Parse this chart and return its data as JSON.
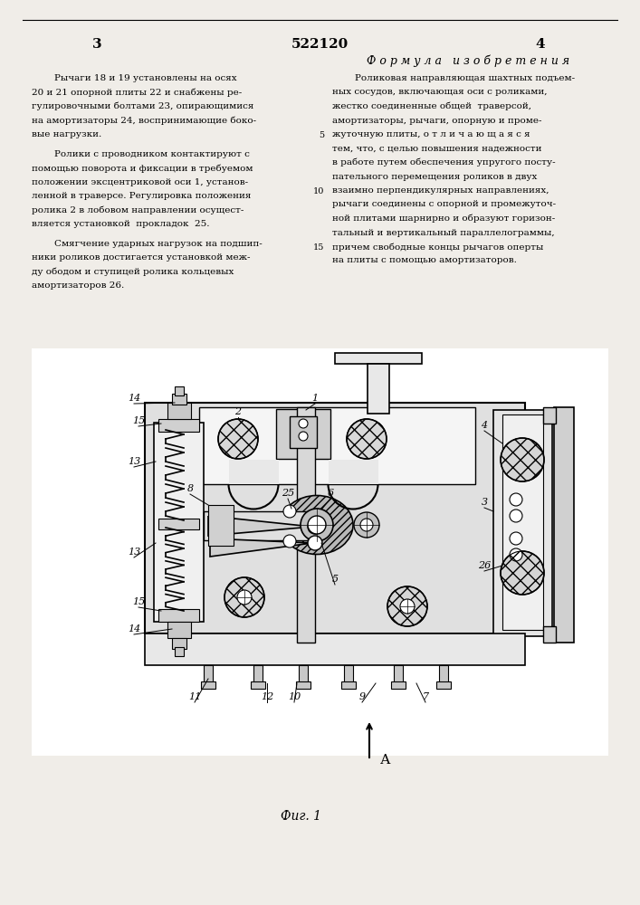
{
  "page_bg": "#f0ede8",
  "top_line_color": "#444444",
  "page_num_left": "3",
  "page_num_center": "522120",
  "page_num_right": "4",
  "formula_header": "Ф о р м у л а   и з о б р е т е н и я",
  "left_text": [
    [
      true,
      "Рычаги 18 и 19 установлены на осях"
    ],
    [
      false,
      "20 и 21 опорной плиты 22 и снабжены ре-"
    ],
    [
      false,
      "гулировочными болтами 23, опирающимися"
    ],
    [
      false,
      "на амортизаторы 24, воспринимающие боко-"
    ],
    [
      false,
      "вые нагрузки."
    ],
    [
      null,
      ""
    ],
    [
      true,
      "Ролики с проводником контактируют с"
    ],
    [
      false,
      "помощью поворота и фиксации в требуемом"
    ],
    [
      false,
      "положении эксцентриковой оси 1, установ-"
    ],
    [
      false,
      "ленной в траверсе. Регулировка положения"
    ],
    [
      false,
      "ролика 2 в лобовом направлении осущест-"
    ],
    [
      false,
      "вляется установкой  прокладок  25."
    ],
    [
      null,
      ""
    ],
    [
      true,
      "Смягчение ударных нагрузок на подшип-"
    ],
    [
      false,
      "ники роликов достигается установкой меж-"
    ],
    [
      false,
      "ду ободом и ступицей ролика кольцевых"
    ],
    [
      false,
      "амортизаторов 26."
    ]
  ],
  "right_text": [
    [
      true,
      "Роликовая направляющая шахтных подъем-"
    ],
    [
      false,
      "ных сосудов, включающая оси с роликами,"
    ],
    [
      false,
      "жестко соединенные общей  траверсой,"
    ],
    [
      false,
      "амортизаторы, рычаги, опорную и проме-"
    ],
    [
      false,
      "жуточную плиты, о т л и ч а ю щ а я с я"
    ],
    [
      false,
      "тем, что, с целью повышения надежности"
    ],
    [
      false,
      "в работе путем обеспечения упругого посту-"
    ],
    [
      false,
      "пательного перемещения роликов в двух"
    ],
    [
      false,
      "взаимно перпендикулярных направлениях,"
    ],
    [
      false,
      "рычаги соединены с опорной и промежуточ-"
    ],
    [
      false,
      "ной плитами шарнирно и образуют горизон-"
    ],
    [
      false,
      "тальный и вертикальный параллелограммы,"
    ],
    [
      false,
      "причем свободные концы рычагов оперты"
    ],
    [
      false,
      "на плиты с помощью амортизаторов."
    ]
  ],
  "line_numbers": [
    [
      4,
      "5"
    ],
    [
      8,
      "10"
    ],
    [
      12,
      "15"
    ]
  ],
  "fig_caption": "Фиг. 1"
}
